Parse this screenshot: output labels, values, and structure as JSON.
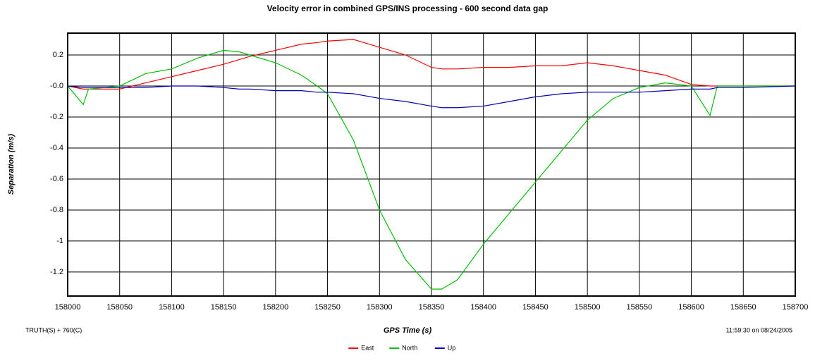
{
  "chart_data": {
    "type": "line",
    "title": "Velocity error in combined GPS/INS processing - 600 second data gap",
    "x_label": "GPS Time (s)",
    "y_label": "Separation (m/s)",
    "footer_left": "TRUTH(S) + 760(C)",
    "footer_right": "11:59:30 on 08/24/2005",
    "x": [
      158000,
      158015,
      158020,
      158050,
      158075,
      158100,
      158125,
      158150,
      158165,
      158175,
      158200,
      158225,
      158240,
      158250,
      158275,
      158300,
      158325,
      158350,
      158360,
      158375,
      158400,
      158425,
      158450,
      158475,
      158500,
      158525,
      158550,
      158575,
      158600,
      158618,
      158625,
      158650,
      158700
    ],
    "series": [
      {
        "name": "East",
        "color": "#ff0000",
        "values": [
          0,
          -0.02,
          -0.02,
          -0.02,
          0.02,
          0.06,
          0.1,
          0.14,
          0.17,
          0.19,
          0.23,
          0.27,
          0.28,
          0.29,
          0.3,
          0.25,
          0.2,
          0.12,
          0.11,
          0.11,
          0.12,
          0.12,
          0.13,
          0.13,
          0.15,
          0.13,
          0.1,
          0.07,
          0.01,
          0.0,
          0.0,
          0.0,
          0.0
        ]
      },
      {
        "name": "North",
        "color": "#00c000",
        "values": [
          0,
          -0.12,
          -0.02,
          0.0,
          0.08,
          0.11,
          0.18,
          0.23,
          0.22,
          0.2,
          0.15,
          0.07,
          0.0,
          -0.05,
          -0.35,
          -0.8,
          -1.12,
          -1.31,
          -1.31,
          -1.25,
          -1.02,
          -0.82,
          -0.62,
          -0.42,
          -0.22,
          -0.08,
          -0.01,
          0.02,
          0.0,
          -0.19,
          0.0,
          0.0,
          0.0
        ]
      },
      {
        "name": "Up",
        "color": "#0000c0",
        "values": [
          0,
          -0.01,
          -0.01,
          -0.01,
          -0.01,
          0.0,
          0.0,
          -0.01,
          -0.02,
          -0.02,
          -0.03,
          -0.03,
          -0.04,
          -0.04,
          -0.05,
          -0.08,
          -0.1,
          -0.13,
          -0.14,
          -0.14,
          -0.13,
          -0.1,
          -0.07,
          -0.05,
          -0.04,
          -0.04,
          -0.04,
          -0.03,
          -0.02,
          -0.02,
          -0.01,
          -0.01,
          0.0
        ]
      }
    ],
    "xlim": [
      158000,
      158700
    ],
    "xticks": [
      158000,
      158050,
      158100,
      158150,
      158200,
      158250,
      158300,
      158350,
      158400,
      158450,
      158500,
      158550,
      158600,
      158650,
      158700
    ],
    "ylim": [
      -1.355,
      0.341
    ],
    "yticks": [
      0.2,
      {
        "value": 0,
        "label": "-0.0"
      },
      -0.2,
      -0.4,
      -0.6,
      -0.8,
      -1.0,
      -1.2
    ],
    "grid": true,
    "legend": "bottom"
  }
}
